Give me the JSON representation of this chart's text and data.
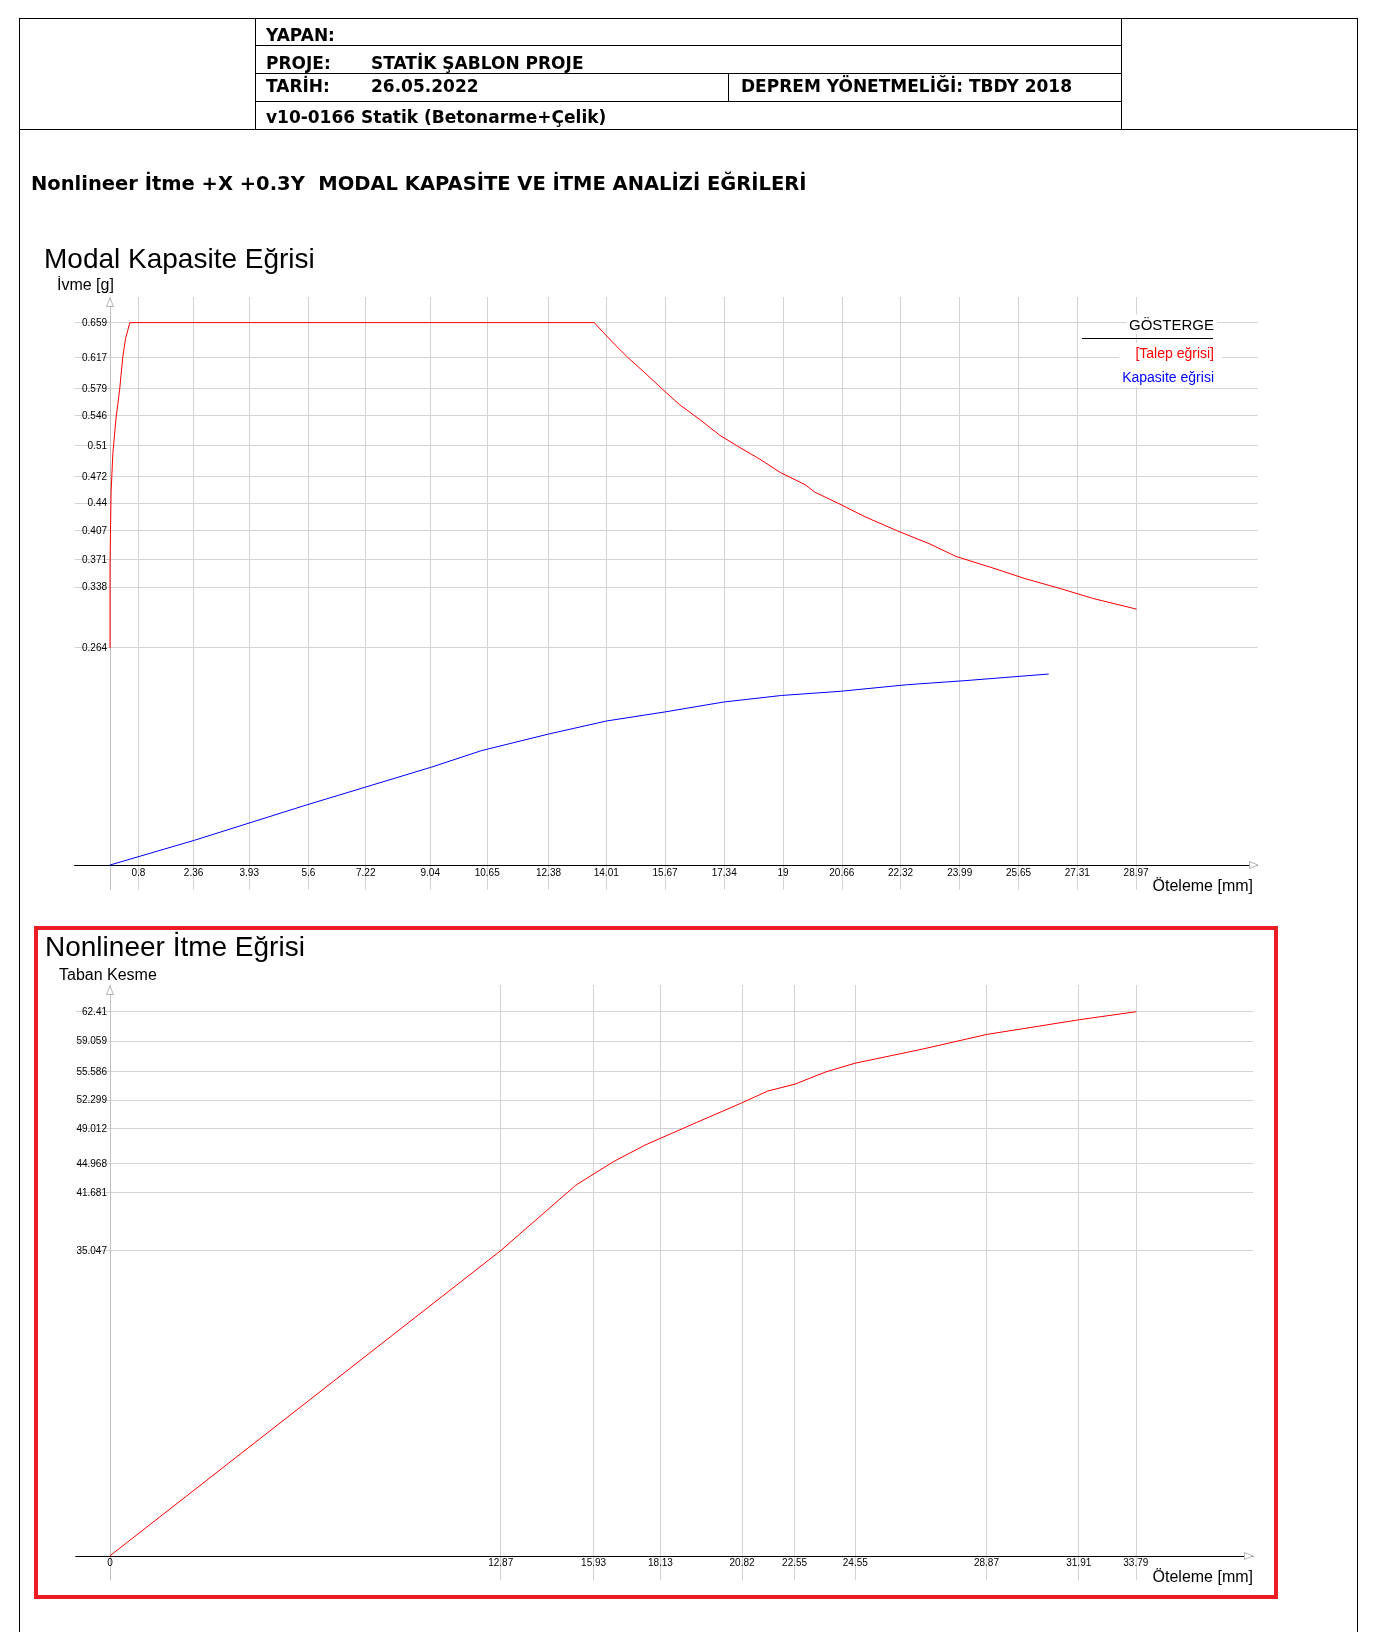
{
  "chart_data": [
    {
      "type": "other",
      "title": "Nonlineer İtme +X +0.3Y  MODAL KAPASİTE VE İTME ANALİZİ EĞRİLERİ",
      "annotations": [
        "YAPAN:",
        "PROJE:",
        "STATİK ŞABLON PROJE",
        "TARİH:",
        "26.05.2022",
        "DEPREM YÖNETMELİĞİ: TBDY 2018",
        "v10-0166 Statik (Betonarme+Çelik)"
      ]
    },
    {
      "type": "line",
      "title": "Modal Kapasite Eğrisi",
      "xlabel": "Öteleme [mm]",
      "ylabel": "İvme [g]",
      "legend_title": "GÖSTERGE",
      "legend": "top right",
      "grid": true,
      "xlim": [
        -1,
        32.4
      ],
      "ylim": [
        -0.03,
        0.69
      ],
      "xticks": [
        0.8,
        2.36,
        3.93,
        5.6,
        7.22,
        9.04,
        10.65,
        12.38,
        14.01,
        15.67,
        17.34,
        19,
        20.66,
        22.32,
        23.99,
        25.65,
        27.31,
        28.97
      ],
      "yticks": [
        0.264,
        0.338,
        0.371,
        0.407,
        0.44,
        0.472,
        0.51,
        0.546,
        0.579,
        0.617,
        0.659
      ],
      "series": [
        {
          "name": "[Talep eğrisi]",
          "color": "#ff0000",
          "x": [
            0,
            0,
            0.03,
            0.08,
            0.17,
            0.27,
            0.36,
            0.44,
            0.56,
            13.67,
            13.93,
            14.26,
            14.61,
            15.1,
            15.6,
            16.09,
            16.66,
            17.22,
            17.79,
            18.35,
            18.92,
            19.63,
            19.9,
            20.58,
            21.32,
            22.23,
            23.15,
            23.88,
            24.99,
            25.55,
            25.83,
            26.82,
            27.74,
            28.97
          ],
          "values": [
            0.264,
            0.366,
            0.453,
            0.5,
            0.543,
            0.577,
            0.617,
            0.64,
            0.659,
            0.659,
            0.647,
            0.632,
            0.617,
            0.598,
            0.578,
            0.559,
            0.541,
            0.522,
            0.507,
            0.493,
            0.477,
            0.462,
            0.453,
            0.439,
            0.423,
            0.406,
            0.39,
            0.375,
            0.36,
            0.352,
            0.348,
            0.336,
            0.324,
            0.311
          ]
        },
        {
          "name": "Kapasite eğrisi",
          "color": "#0000ff",
          "x": [
            0,
            2.38,
            5.55,
            9.08,
            10.49,
            12.37,
            14.02,
            15.67,
            17.32,
            18.96,
            20.61,
            22.49,
            24.14,
            26.49
          ],
          "values": [
            0,
            0.03,
            0.073,
            0.119,
            0.139,
            0.159,
            0.175,
            0.186,
            0.198,
            0.206,
            0.211,
            0.219,
            0.224,
            0.232
          ]
        }
      ]
    },
    {
      "type": "line",
      "title": "Nonlineer İtme Eğrisi",
      "xlabel": "Öteleme [mm]",
      "ylabel": "Taban Kesme",
      "grid": true,
      "xlim": [
        -1.13,
        37.65
      ],
      "ylim": [
        -2.8,
        65.47
      ],
      "xticks": [
        0,
        12.87,
        15.93,
        18.13,
        20.82,
        22.55,
        24.55,
        28.87,
        31.91,
        33.79
      ],
      "yticks": [
        35.047,
        41.681,
        44.968,
        49.012,
        52.299,
        55.586,
        59.059,
        62.41
      ],
      "color": "#ff0000",
      "x": [
        0,
        12.87,
        15.34,
        16.58,
        17.62,
        18.14,
        19.32,
        20.78,
        21.66,
        22.56,
        23.58,
        24.54,
        26.74,
        28.88,
        31.95,
        33.79
      ],
      "values": [
        0,
        35,
        42.5,
        45.2,
        47.1,
        47.9,
        49.7,
        51.9,
        53.3,
        54.1,
        55.5,
        56.5,
        58.1,
        59.8,
        61.5,
        62.4
      ]
    }
  ]
}
